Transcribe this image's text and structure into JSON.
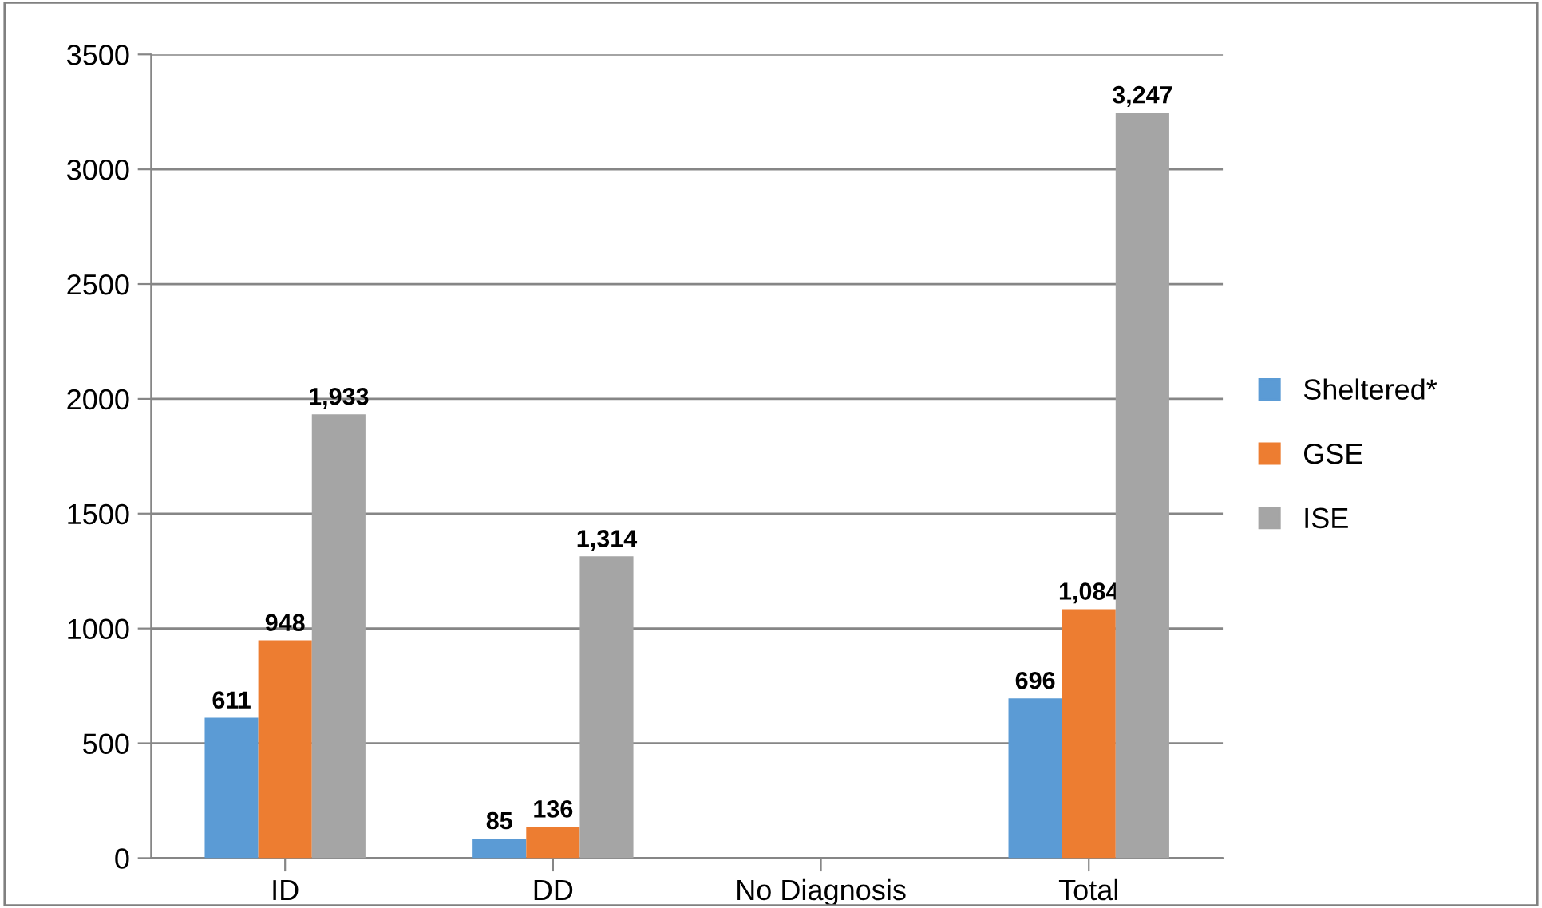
{
  "chart_data": {
    "type": "bar",
    "categories": [
      "ID",
      "DD",
      "No Diagnosis",
      "Total"
    ],
    "series": [
      {
        "name": "Sheltered*",
        "color": "#5b9bd5",
        "values": [
          611,
          85,
          null,
          696
        ],
        "value_labels": [
          "611",
          "85",
          null,
          "696"
        ]
      },
      {
        "name": "GSE",
        "color": "#ed7d31",
        "values": [
          948,
          136,
          null,
          1084
        ],
        "value_labels": [
          "948",
          "136",
          null,
          "1,084"
        ]
      },
      {
        "name": "ISE",
        "color": "#a5a5a5",
        "values": [
          1933,
          1314,
          null,
          3247
        ],
        "value_labels": [
          "1,933",
          "1,314",
          null,
          "3,247"
        ]
      }
    ],
    "ylim": [
      0,
      3500
    ],
    "yticks": [
      0,
      500,
      1000,
      1500,
      2000,
      2500,
      3000,
      3500
    ],
    "grid": "y",
    "legend": "right"
  }
}
